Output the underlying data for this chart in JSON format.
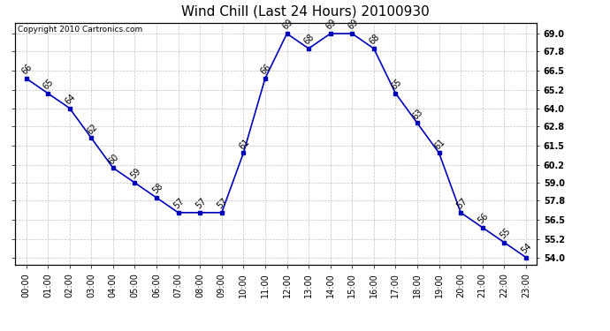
{
  "title": "Wind Chill (Last 24 Hours) 20100930",
  "copyright": "Copyright 2010 Cartronics.com",
  "hours": [
    0,
    1,
    2,
    3,
    4,
    5,
    6,
    7,
    8,
    9,
    10,
    11,
    12,
    13,
    14,
    15,
    16,
    17,
    18,
    19,
    20,
    21,
    22,
    23
  ],
  "values": [
    66,
    65,
    64,
    62,
    60,
    59,
    58,
    57,
    57,
    57,
    61,
    66,
    69,
    68,
    69,
    69,
    68,
    65,
    63,
    61,
    57,
    56,
    55,
    54
  ],
  "x_labels": [
    "00:00",
    "01:00",
    "02:00",
    "03:00",
    "04:00",
    "05:00",
    "06:00",
    "07:00",
    "08:00",
    "09:00",
    "10:00",
    "11:00",
    "12:00",
    "13:00",
    "14:00",
    "15:00",
    "16:00",
    "17:00",
    "18:00",
    "19:00",
    "20:00",
    "21:00",
    "22:00",
    "23:00"
  ],
  "y_ticks": [
    54.0,
    55.2,
    56.5,
    57.8,
    59.0,
    60.2,
    61.5,
    62.8,
    64.0,
    65.2,
    66.5,
    67.8,
    69.0
  ],
  "ylim": [
    53.5,
    69.7
  ],
  "line_color": "#0000bb",
  "marker_color": "#0000bb",
  "grid_color": "#bbbbbb",
  "bg_color": "#ffffff",
  "plot_bg_color": "#ffffff",
  "title_fontsize": 11,
  "label_fontsize": 7,
  "annot_fontsize": 7,
  "copyright_fontsize": 6.5
}
